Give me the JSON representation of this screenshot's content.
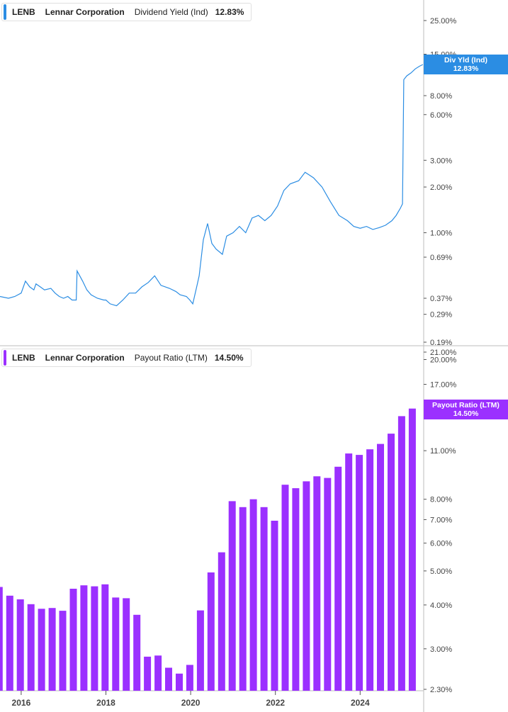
{
  "colors": {
    "yield": "#2b8de3",
    "payout": "#9b30ff",
    "axis": "#444444",
    "grid": "#dddddd"
  },
  "top_legend": {
    "ticker": "LENB",
    "company": "Lennar Corporation",
    "metric": "Dividend Yield (Ind)",
    "value": "12.83%"
  },
  "bottom_legend": {
    "ticker": "LENB",
    "company": "Lennar Corporation",
    "metric": "Payout Ratio (LTM)",
    "value": "14.50%"
  },
  "top_badge": {
    "label": "Div Yld (Ind)",
    "value": "12.83%"
  },
  "bottom_badge": {
    "label": "Payout Ratio (LTM)",
    "value": "14.50%"
  },
  "chart_data": [
    {
      "type": "line",
      "title": "LENB Lennar Corporation Dividend Yield (Ind)",
      "scale": "log",
      "x_range": [
        2015.5,
        2025.5
      ],
      "y_range": [
        0.19,
        25.0
      ],
      "y_ticks": [
        "25.00%",
        "15.00%",
        "8.00%",
        "6.00%",
        "3.00%",
        "2.00%",
        "1.00%",
        "0.69%",
        "0.37%",
        "0.29%",
        "0.19%"
      ],
      "y_tick_values": [
        25,
        15,
        8,
        6,
        3,
        2,
        1,
        0.69,
        0.37,
        0.29,
        0.19
      ],
      "series": [
        {
          "name": "Dividend Yield (Ind)",
          "x": [
            2015.5,
            2015.7,
            2015.85,
            2016.0,
            2016.1,
            2016.2,
            2016.3,
            2016.35,
            2016.45,
            2016.55,
            2016.7,
            2016.8,
            2016.9,
            2017.0,
            2017.1,
            2017.2,
            2017.3,
            2017.32,
            2017.45,
            2017.55,
            2017.65,
            2017.8,
            2017.95,
            2018.0,
            2018.1,
            2018.25,
            2018.4,
            2018.55,
            2018.7,
            2018.85,
            2019.0,
            2019.15,
            2019.3,
            2019.5,
            2019.65,
            2019.75,
            2019.9,
            2019.98,
            2020.05,
            2020.15,
            2020.2,
            2020.3,
            2020.4,
            2020.5,
            2020.6,
            2020.75,
            2020.85,
            2021.0,
            2021.15,
            2021.3,
            2021.45,
            2021.6,
            2021.75,
            2021.9,
            2022.05,
            2022.2,
            2022.35,
            2022.55,
            2022.7,
            2022.8,
            2022.9,
            2023.1,
            2023.3,
            2023.5,
            2023.7,
            2023.85,
            2024.0,
            2024.15,
            2024.3,
            2024.45,
            2024.6,
            2024.75,
            2024.85,
            2024.95,
            2025.0,
            2025.03,
            2025.1,
            2025.2,
            2025.3,
            2025.4,
            2025.48
          ],
          "values": [
            0.38,
            0.37,
            0.38,
            0.4,
            0.48,
            0.44,
            0.42,
            0.46,
            0.44,
            0.42,
            0.43,
            0.4,
            0.38,
            0.37,
            0.38,
            0.36,
            0.36,
            0.56,
            0.48,
            0.42,
            0.39,
            0.37,
            0.36,
            0.36,
            0.34,
            0.33,
            0.36,
            0.4,
            0.4,
            0.44,
            0.47,
            0.52,
            0.45,
            0.43,
            0.41,
            0.39,
            0.38,
            0.36,
            0.34,
            0.45,
            0.52,
            0.9,
            1.15,
            0.85,
            0.78,
            0.72,
            0.95,
            1.0,
            1.1,
            1.0,
            1.25,
            1.3,
            1.2,
            1.3,
            1.5,
            1.9,
            2.1,
            2.2,
            2.5,
            2.4,
            2.3,
            2.0,
            1.6,
            1.3,
            1.2,
            1.1,
            1.07,
            1.1,
            1.05,
            1.08,
            1.12,
            1.2,
            1.3,
            1.45,
            1.55,
            10.2,
            10.8,
            11.3,
            12.0,
            12.5,
            12.83
          ]
        }
      ]
    },
    {
      "type": "bar",
      "title": "LENB Lennar Corporation Payout Ratio (LTM)",
      "scale": "log",
      "x_range": [
        2015.5,
        2025.5
      ],
      "y_range": [
        2.3,
        21.0
      ],
      "y_ticks": [
        "21.00%",
        "20.00%",
        "17.00%",
        "11.00%",
        "8.00%",
        "7.00%",
        "6.00%",
        "5.00%",
        "4.00%",
        "3.00%",
        "2.30%"
      ],
      "y_tick_values": [
        21,
        20,
        17,
        11,
        8,
        7,
        6,
        5,
        4,
        3,
        2.3
      ],
      "x_ticks": [
        "2016",
        "2018",
        "2020",
        "2022",
        "2024"
      ],
      "x_tick_values": [
        2016,
        2018,
        2020,
        2022,
        2024
      ],
      "x": [
        2015.48,
        2015.73,
        2015.98,
        2016.23,
        2016.48,
        2016.73,
        2016.98,
        2017.23,
        2017.48,
        2017.73,
        2017.98,
        2018.23,
        2018.48,
        2018.73,
        2018.98,
        2019.23,
        2019.48,
        2019.73,
        2019.98,
        2020.23,
        2020.48,
        2020.73,
        2020.98,
        2021.23,
        2021.48,
        2021.73,
        2021.98,
        2022.23,
        2022.48,
        2022.73,
        2022.98,
        2023.23,
        2023.48,
        2023.73,
        2023.98,
        2024.23,
        2024.48,
        2024.73,
        2024.98,
        2025.23
      ],
      "values": [
        4.5,
        4.25,
        4.15,
        4.02,
        3.9,
        3.92,
        3.85,
        4.45,
        4.55,
        4.52,
        4.58,
        4.2,
        4.18,
        3.75,
        2.85,
        2.87,
        2.65,
        2.55,
        2.7,
        3.86,
        4.95,
        5.65,
        7.9,
        7.6,
        8.0,
        7.6,
        6.95,
        8.8,
        8.6,
        9.0,
        9.3,
        9.2,
        9.9,
        10.8,
        10.7,
        11.1,
        11.5,
        12.3,
        13.8,
        14.5
      ],
      "series": [
        {
          "name": "Payout Ratio (LTM)"
        }
      ]
    }
  ]
}
